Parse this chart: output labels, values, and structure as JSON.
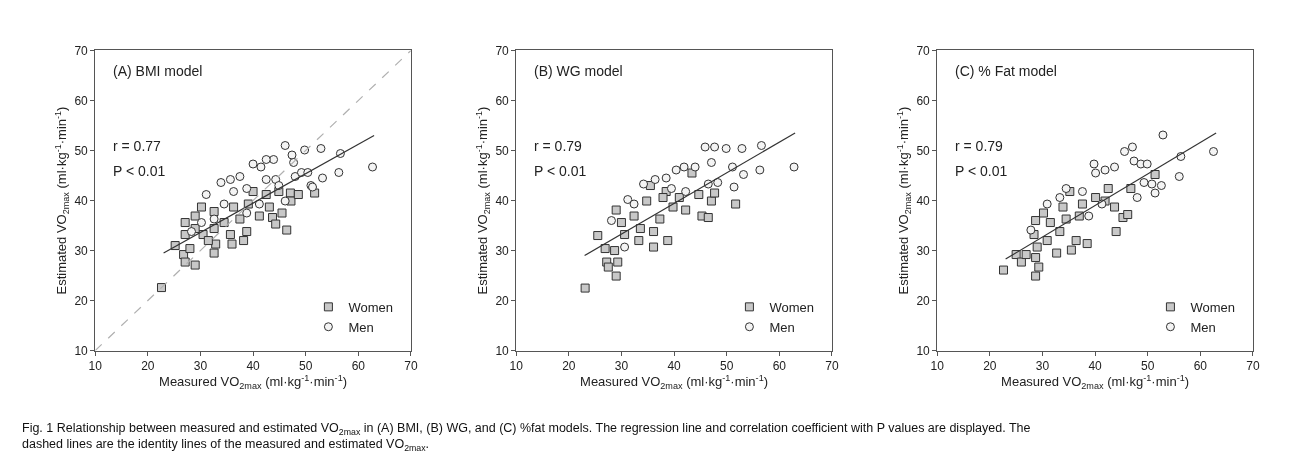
{
  "chart_data": [
    {
      "type": "scatter",
      "xlabel": "Measured VO$_{2max}$ (ml·kg$^{-1}$·min$^{-1}$)",
      "ylabel": "Estimated VO$_{2max}$ (ml·kg$^{-1}$·min$^{-1}$)",
      "xlim": [
        10,
        70
      ],
      "ylim": [
        10,
        70
      ],
      "xticks": [
        10,
        20,
        30,
        40,
        50,
        60,
        70
      ],
      "yticks": [
        10,
        20,
        30,
        40,
        50,
        60,
        70
      ],
      "grid": false,
      "legend": "bottom right",
      "annotations": [
        "(A) BMI model",
        "r = 0.77",
        "P < 0.01",
        "Fig. 1 Relationship between measured and estimated VO$_{2max}$ in (A) BMI, (B) WG, and (C) %fat models. The regression line and correlation coefficient with P values are displayed. The dashed lines are the identity lines of the measured and estimated VO$_{2max}$."
      ],
      "series": [
        {
          "name": "Women",
          "marker": "square",
          "color": "#c8c8c8",
          "x": [
            22.6,
            25.2,
            26.8,
            27.1,
            29.0,
            28.0,
            27.1,
            27.1,
            29.0,
            30.2,
            30.5,
            32.6,
            32.9,
            32.6,
            32.6,
            34.5,
            35.7,
            36.0,
            36.3,
            37.5,
            38.2,
            38.8,
            39.1,
            40.0,
            41.2,
            42.5,
            43.1,
            43.7,
            44.3,
            44.9,
            45.5,
            46.4,
            47.1,
            47.2,
            48.6,
            51.7,
            29.0,
            31.5
          ],
          "values": [
            22.6,
            31.0,
            29.2,
            27.7,
            27.1,
            30.4,
            33.2,
            35.6,
            36.9,
            38.7,
            33.2,
            29.5,
            31.3,
            34.4,
            37.8,
            35.6,
            33.2,
            31.3,
            38.7,
            36.3,
            32.0,
            33.8,
            39.3,
            41.8,
            36.9,
            41.2,
            38.7,
            36.6,
            35.3,
            41.8,
            37.5,
            34.1,
            41.5,
            39.9,
            41.2,
            41.5,
            34.4,
            32.0
          ]
        },
        {
          "name": "Men",
          "marker": "circle",
          "color": "#f4f4f4",
          "x": [
            28.3,
            31.1,
            33.9,
            35.7,
            37.5,
            38.8,
            40.0,
            41.5,
            42.5,
            44.3,
            43.9,
            44.9,
            46.1,
            47.4,
            47.7,
            48.0,
            49.8,
            49.2,
            50.4,
            51.0,
            52.9,
            53.2,
            56.3,
            56.6,
            62.7,
            34.5,
            36.3,
            38.8,
            41.2,
            42.5,
            46.1,
            51.3,
            30.2,
            32.6
          ],
          "values": [
            33.8,
            41.2,
            43.6,
            44.2,
            44.8,
            42.4,
            47.3,
            46.7,
            44.2,
            44.2,
            48.2,
            43.0,
            51.0,
            49.1,
            47.6,
            44.8,
            50.1,
            45.6,
            45.6,
            43.0,
            50.4,
            44.5,
            45.6,
            49.4,
            46.7,
            39.3,
            41.8,
            37.5,
            39.3,
            48.2,
            39.9,
            42.7,
            35.6,
            36.3
          ]
        },
        {
          "type": "line",
          "color": "#333333",
          "line_style": "solid",
          "x": [
            23,
            63
          ],
          "values": [
            29.5,
            53
          ]
        },
        {
          "type": "line",
          "color": "#b0b0b0",
          "line_style": "dashed",
          "x": [
            10,
            70
          ],
          "values": [
            10,
            70
          ]
        }
      ]
    },
    {
      "type": "scatter",
      "xlabel": "Measured VO$_{2max}$ (ml·kg$^{-1}$·min$^{-1}$)",
      "ylabel": "Estimated VO$_{2max}$ (ml·kg$^{-1}$·min$^{-1}$)",
      "xlim": [
        10,
        70
      ],
      "ylim": [
        10,
        70
      ],
      "xticks": [
        10,
        20,
        30,
        40,
        50,
        60,
        70
      ],
      "yticks": [
        10,
        20,
        30,
        40,
        50,
        60,
        70
      ],
      "grid": false,
      "legend": "bottom right",
      "annotations": [
        "(B) WG model",
        "r = 0.79",
        "P < 0.01"
      ],
      "series": [
        {
          "name": "Women",
          "marker": "square",
          "color": "#c8c8c8",
          "x": [
            23.1,
            25.5,
            26.9,
            27.2,
            27.5,
            29.3,
            29.0,
            28.7,
            29.0,
            30.0,
            30.6,
            32.4,
            33.3,
            33.6,
            34.8,
            35.5,
            36.1,
            36.1,
            37.3,
            38.8,
            38.5,
            39.8,
            41.0,
            42.2,
            43.4,
            44.7,
            45.3,
            46.5,
            47.1,
            47.7,
            51.7,
            37.9
          ],
          "values": [
            22.5,
            33.0,
            30.4,
            27.7,
            26.7,
            27.7,
            24.9,
            30.0,
            38.1,
            35.6,
            33.2,
            36.9,
            32.0,
            34.4,
            39.9,
            43.0,
            33.8,
            30.7,
            36.3,
            32.0,
            41.8,
            38.7,
            40.6,
            38.1,
            45.5,
            41.2,
            36.9,
            36.6,
            39.9,
            41.5,
            39.3,
            40.6
          ]
        },
        {
          "name": "Men",
          "marker": "circle",
          "color": "#f4f4f4",
          "x": [
            28.1,
            31.2,
            34.2,
            36.4,
            38.5,
            40.4,
            41.9,
            44.0,
            45.9,
            47.7,
            49.9,
            52.9,
            56.6,
            56.3,
            53.2,
            51.1,
            51.4,
            48.3,
            46.5,
            62.8,
            30.6,
            32.4,
            39.5,
            42.2,
            47.1
          ],
          "values": [
            36.0,
            40.2,
            43.3,
            44.2,
            44.5,
            46.1,
            46.7,
            46.7,
            50.7,
            50.7,
            50.4,
            50.4,
            51.0,
            46.1,
            45.2,
            46.7,
            42.7,
            43.6,
            43.3,
            46.7,
            30.7,
            39.3,
            42.4,
            41.8,
            47.6
          ]
        },
        {
          "type": "line",
          "color": "#333333",
          "line_style": "solid",
          "x": [
            23,
            63
          ],
          "values": [
            29,
            53.5
          ]
        }
      ]
    },
    {
      "type": "scatter",
      "xlabel": "Measured VO$_{2max}$ (ml·kg$^{-1}$·min$^{-1}$)",
      "ylabel": "Estimated VO$_{2max}$ (ml·kg$^{-1}$·min$^{-1}$)",
      "xlim": [
        10,
        70
      ],
      "ylim": [
        10,
        70
      ],
      "xticks": [
        10,
        20,
        30,
        40,
        50,
        60,
        70
      ],
      "yticks": [
        10,
        20,
        30,
        40,
        50,
        60,
        70
      ],
      "grid": false,
      "legend": "bottom right",
      "annotations": [
        "(C) % Fat model",
        "r = 0.79",
        "P < 0.01"
      ],
      "series": [
        {
          "name": "Women",
          "marker": "square",
          "color": "#c8c8c8",
          "x": [
            22.6,
            25.0,
            26.0,
            26.9,
            28.7,
            28.7,
            29.3,
            29.0,
            28.4,
            28.7,
            30.2,
            30.9,
            32.7,
            33.3,
            33.9,
            35.2,
            35.5,
            36.4,
            37.0,
            37.6,
            38.5,
            40.1,
            41.9,
            42.5,
            43.7,
            44.0,
            45.3,
            46.2,
            46.8,
            51.4,
            31.5,
            34.5
          ],
          "values": [
            26.1,
            29.2,
            27.7,
            29.2,
            28.6,
            24.9,
            26.7,
            30.7,
            33.2,
            36.0,
            37.5,
            32.0,
            29.5,
            33.8,
            38.7,
            41.8,
            30.1,
            32.0,
            36.9,
            39.3,
            31.4,
            40.6,
            39.9,
            42.4,
            38.7,
            33.8,
            36.6,
            37.2,
            42.4,
            45.2,
            35.6,
            36.3
          ]
        },
        {
          "name": "Men",
          "marker": "circle",
          "color": "#f4f4f4",
          "x": [
            27.8,
            30.9,
            33.3,
            34.5,
            37.6,
            39.8,
            40.1,
            41.9,
            43.7,
            45.6,
            47.1,
            47.4,
            48.7,
            49.9,
            49.3,
            50.8,
            51.4,
            52.6,
            52.9,
            56.0,
            56.3,
            62.5,
            48.0,
            41.3,
            38.8
          ],
          "values": [
            34.1,
            39.3,
            40.6,
            42.4,
            41.8,
            47.3,
            45.5,
            46.1,
            46.7,
            49.8,
            50.7,
            47.9,
            47.3,
            47.3,
            43.6,
            43.3,
            41.5,
            43.0,
            53.1,
            44.8,
            48.8,
            49.8,
            40.6,
            39.3,
            36.9
          ]
        },
        {
          "type": "line",
          "color": "#333333",
          "line_style": "solid",
          "x": [
            23,
            63
          ],
          "values": [
            28.3,
            53.5
          ]
        }
      ]
    }
  ]
}
